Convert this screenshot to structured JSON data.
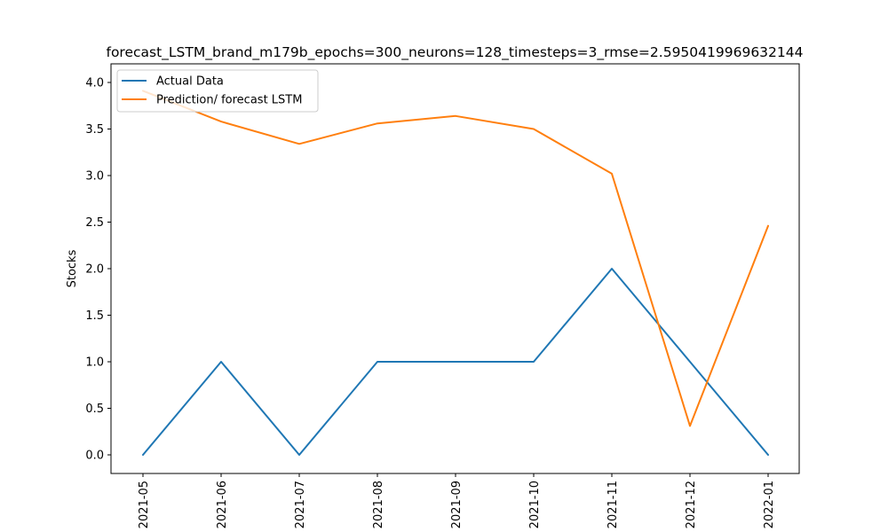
{
  "chart_data": {
    "type": "line",
    "title": "forecast_LSTM_brand_m179b_epochs=300_neurons=128_timesteps=3_rmse=2.5950419969632144",
    "xlabel": "",
    "ylabel": "Stocks",
    "x": [
      "2021-05",
      "2021-06",
      "2021-07",
      "2021-08",
      "2021-09",
      "2021-10",
      "2021-11",
      "2021-12",
      "2022-01"
    ],
    "xticks": [
      "2021-05",
      "2021-06",
      "2021-07",
      "2021-08",
      "2021-09",
      "2021-10",
      "2021-11",
      "2021-12",
      "2022-01"
    ],
    "yticks": [
      "0.0",
      "0.5",
      "1.0",
      "1.5",
      "2.0",
      "2.5",
      "3.0",
      "3.5",
      "4.0"
    ],
    "ylim": [
      -0.2,
      4.2
    ],
    "grid": false,
    "legend_position": "upper-left",
    "series": [
      {
        "name": "Actual Data",
        "color": "#1f77b4",
        "values": [
          0,
          1,
          0,
          1,
          1,
          1,
          2,
          1,
          0
        ]
      },
      {
        "name": "Prediction/ forecast LSTM",
        "color": "#ff7f0e",
        "values": [
          3.91,
          3.58,
          3.34,
          3.56,
          3.64,
          3.5,
          3.02,
          0.31,
          2.46
        ]
      }
    ]
  }
}
